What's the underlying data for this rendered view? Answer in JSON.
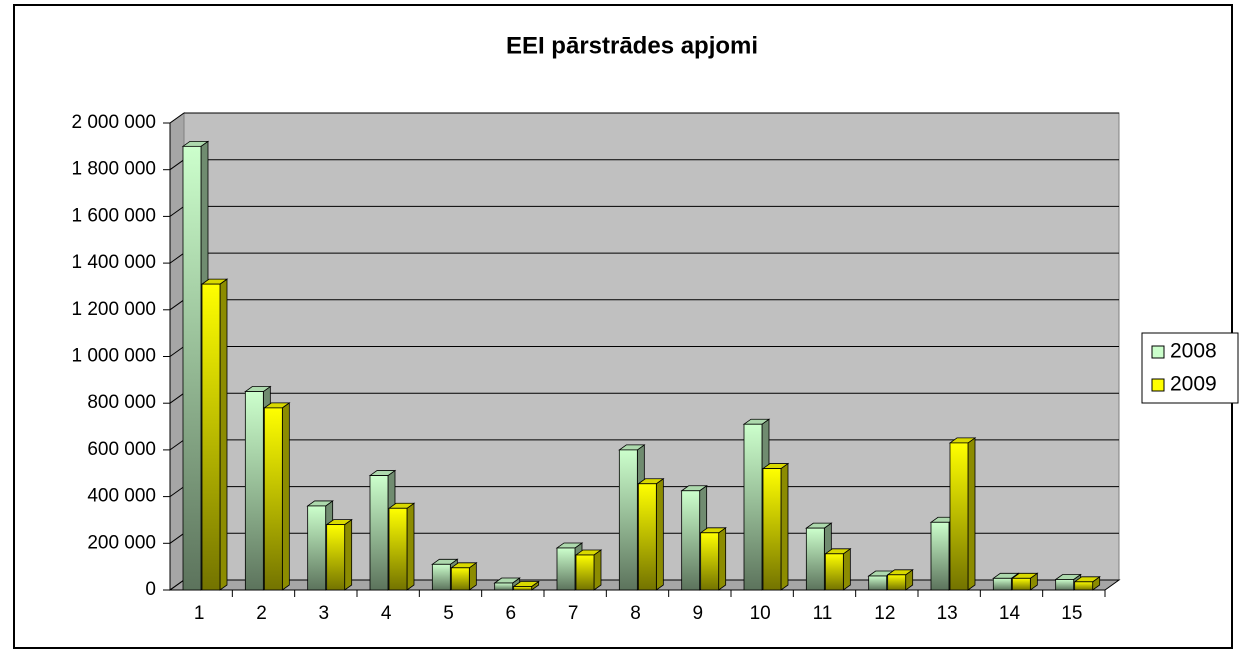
{
  "chart_data": {
    "type": "bar3d",
    "title": "EEI pārstrādes apjomi",
    "categories": [
      "1",
      "2",
      "3",
      "4",
      "5",
      "6",
      "7",
      "8",
      "9",
      "10",
      "11",
      "12",
      "13",
      "14",
      "15"
    ],
    "series": [
      {
        "name": "2008",
        "color": "#ccffcc",
        "values": [
          1900000,
          850000,
          360000,
          490000,
          110000,
          30000,
          180000,
          600000,
          425000,
          710000,
          265000,
          60000,
          290000,
          50000,
          45000
        ]
      },
      {
        "name": "2009",
        "color": "#ffff00",
        "values": [
          1310000,
          780000,
          280000,
          350000,
          95000,
          15000,
          150000,
          455000,
          245000,
          520000,
          155000,
          65000,
          630000,
          50000,
          35000
        ]
      }
    ],
    "ylim": [
      0,
      2000000
    ],
    "yticks": [
      0,
      {
        "value": 200000,
        "label": "200 000"
      },
      {
        "value": 400000,
        "label": "400 000"
      },
      {
        "value": 600000,
        "label": "600 000"
      },
      {
        "value": 800000,
        "label": "800 000"
      },
      {
        "value": 1000000,
        "label": "1 000 000"
      },
      {
        "value": 1200000,
        "label": "1 200 000"
      },
      {
        "value": 1400000,
        "label": "1 400 000"
      },
      {
        "value": 1600000,
        "label": "1 600 000"
      },
      {
        "value": 1800000,
        "label": "1 800 000"
      },
      {
        "value": 2000000,
        "label": "2 000 000"
      }
    ],
    "grid": true,
    "legend": "right"
  }
}
